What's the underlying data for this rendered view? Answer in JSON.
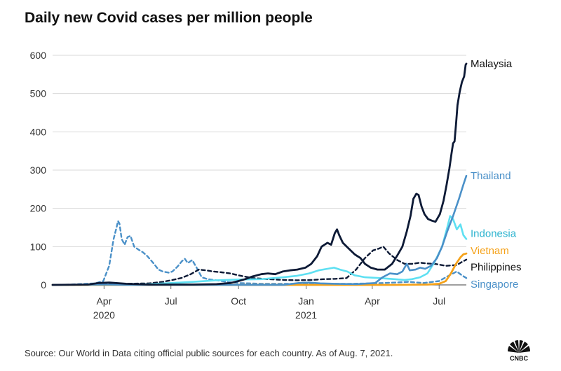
{
  "title": "Daily new Covid cases per million people",
  "source": "Source: Our World in Data citing official public sources for each country. As of Aug. 7, 2021.",
  "logo": {
    "icon": "cnbc-peacock-logo",
    "text": "CNBC"
  },
  "chart_data": {
    "type": "line",
    "title": "Daily new Covid cases per million people",
    "xlabel": "",
    "ylabel": "",
    "ylim": [
      0,
      600
    ],
    "xlim": [
      "2020-01-22",
      "2021-08-07"
    ],
    "yticks": [
      0,
      100,
      200,
      300,
      400,
      500,
      600
    ],
    "xticks": [
      {
        "date": "2020-04-01",
        "label": "Apr",
        "sub": "2020"
      },
      {
        "date": "2020-07-01",
        "label": "Jul",
        "sub": ""
      },
      {
        "date": "2020-10-01",
        "label": "Oct",
        "sub": ""
      },
      {
        "date": "2021-01-01",
        "label": "Jan",
        "sub": "2021"
      },
      {
        "date": "2021-04-01",
        "label": "Apr",
        "sub": ""
      },
      {
        "date": "2021-07-01",
        "label": "Jul",
        "sub": ""
      }
    ],
    "grid": true,
    "legend": "direct labels at line ends",
    "series": [
      {
        "name": "Singapore",
        "color": "#4a90c8",
        "dash": true,
        "width": 2.4,
        "points": [
          [
            "2020-01-22",
            0
          ],
          [
            "2020-02-15",
            1
          ],
          [
            "2020-03-20",
            4
          ],
          [
            "2020-03-31",
            10
          ],
          [
            "2020-04-08",
            50
          ],
          [
            "2020-04-14",
            120
          ],
          [
            "2020-04-18",
            150
          ],
          [
            "2020-04-20",
            167
          ],
          [
            "2020-04-22",
            160
          ],
          [
            "2020-04-25",
            120
          ],
          [
            "2020-04-29",
            105
          ],
          [
            "2020-05-03",
            125
          ],
          [
            "2020-05-07",
            128
          ],
          [
            "2020-05-12",
            100
          ],
          [
            "2020-05-18",
            92
          ],
          [
            "2020-05-24",
            85
          ],
          [
            "2020-05-30",
            75
          ],
          [
            "2020-06-08",
            55
          ],
          [
            "2020-06-14",
            40
          ],
          [
            "2020-06-20",
            35
          ],
          [
            "2020-06-28",
            32
          ],
          [
            "2020-07-03",
            35
          ],
          [
            "2020-07-10",
            48
          ],
          [
            "2020-07-16",
            62
          ],
          [
            "2020-07-20",
            68
          ],
          [
            "2020-07-24",
            57
          ],
          [
            "2020-07-30",
            65
          ],
          [
            "2020-08-05",
            45
          ],
          [
            "2020-08-12",
            20
          ],
          [
            "2020-08-20",
            15
          ],
          [
            "2020-09-01",
            12
          ],
          [
            "2020-09-15",
            8
          ],
          [
            "2020-10-01",
            5
          ],
          [
            "2020-11-01",
            3
          ],
          [
            "2020-12-01",
            3
          ],
          [
            "2021-01-01",
            3
          ],
          [
            "2021-02-01",
            3
          ],
          [
            "2021-03-01",
            3
          ],
          [
            "2021-04-01",
            4
          ],
          [
            "2021-05-01",
            6
          ],
          [
            "2021-05-20",
            8
          ],
          [
            "2021-06-10",
            5
          ],
          [
            "2021-07-01",
            10
          ],
          [
            "2021-07-15",
            25
          ],
          [
            "2021-07-25",
            35
          ],
          [
            "2021-08-01",
            25
          ],
          [
            "2021-08-07",
            18
          ]
        ]
      },
      {
        "name": "Philippines",
        "color": "#0d1a36",
        "dash": true,
        "width": 2.4,
        "points": [
          [
            "2020-01-22",
            0
          ],
          [
            "2020-03-01",
            0
          ],
          [
            "2020-04-01",
            2
          ],
          [
            "2020-05-01",
            3
          ],
          [
            "2020-06-01",
            4
          ],
          [
            "2020-06-20",
            8
          ],
          [
            "2020-07-01",
            12
          ],
          [
            "2020-07-15",
            18
          ],
          [
            "2020-07-28",
            28
          ],
          [
            "2020-08-08",
            40
          ],
          [
            "2020-08-18",
            38
          ],
          [
            "2020-08-28",
            35
          ],
          [
            "2020-09-08",
            33
          ],
          [
            "2020-09-20",
            30
          ],
          [
            "2020-10-01",
            25
          ],
          [
            "2020-10-20",
            18
          ],
          [
            "2020-11-10",
            15
          ],
          [
            "2020-12-01",
            13
          ],
          [
            "2020-12-20",
            12
          ],
          [
            "2021-01-10",
            13
          ],
          [
            "2021-01-25",
            15
          ],
          [
            "2021-02-10",
            16
          ],
          [
            "2021-02-25",
            18
          ],
          [
            "2021-03-10",
            40
          ],
          [
            "2021-03-22",
            70
          ],
          [
            "2021-04-02",
            90
          ],
          [
            "2021-04-10",
            95
          ],
          [
            "2021-04-16",
            100
          ],
          [
            "2021-04-24",
            82
          ],
          [
            "2021-05-05",
            65
          ],
          [
            "2021-05-15",
            55
          ],
          [
            "2021-05-25",
            55
          ],
          [
            "2021-06-05",
            58
          ],
          [
            "2021-06-15",
            56
          ],
          [
            "2021-06-25",
            55
          ],
          [
            "2021-07-10",
            50
          ],
          [
            "2021-07-25",
            52
          ],
          [
            "2021-08-01",
            60
          ],
          [
            "2021-08-07",
            66
          ]
        ]
      },
      {
        "name": "Indonesia",
        "color": "#5ee0f2",
        "dash": false,
        "width": 2.6,
        "points": [
          [
            "2020-01-22",
            0
          ],
          [
            "2020-04-01",
            0
          ],
          [
            "2020-05-01",
            1
          ],
          [
            "2020-06-01",
            2
          ],
          [
            "2020-07-01",
            5
          ],
          [
            "2020-08-01",
            8
          ],
          [
            "2020-09-01",
            12
          ],
          [
            "2020-10-01",
            14
          ],
          [
            "2020-11-01",
            15
          ],
          [
            "2020-12-01",
            20
          ],
          [
            "2020-12-20",
            24
          ],
          [
            "2021-01-05",
            30
          ],
          [
            "2021-01-18",
            38
          ],
          [
            "2021-01-30",
            42
          ],
          [
            "2021-02-08",
            45
          ],
          [
            "2021-02-16",
            40
          ],
          [
            "2021-02-26",
            35
          ],
          [
            "2021-03-08",
            25
          ],
          [
            "2021-03-22",
            20
          ],
          [
            "2021-04-10",
            18
          ],
          [
            "2021-05-01",
            15
          ],
          [
            "2021-05-15",
            13
          ],
          [
            "2021-05-25",
            15
          ],
          [
            "2021-06-05",
            20
          ],
          [
            "2021-06-15",
            30
          ],
          [
            "2021-06-25",
            60
          ],
          [
            "2021-07-05",
            100
          ],
          [
            "2021-07-12",
            150
          ],
          [
            "2021-07-16",
            180
          ],
          [
            "2021-07-20",
            172
          ],
          [
            "2021-07-25",
            145
          ],
          [
            "2021-07-30",
            158
          ],
          [
            "2021-08-03",
            130
          ],
          [
            "2021-08-07",
            120
          ]
        ]
      },
      {
        "name": "Vietnam",
        "color": "#f5a21a",
        "dash": false,
        "width": 2.8,
        "points": [
          [
            "2020-01-22",
            0
          ],
          [
            "2021-05-01",
            0
          ],
          [
            "2021-06-15",
            1
          ],
          [
            "2021-07-01",
            3
          ],
          [
            "2021-07-10",
            10
          ],
          [
            "2021-07-17",
            30
          ],
          [
            "2021-07-24",
            55
          ],
          [
            "2021-07-30",
            72
          ],
          [
            "2021-08-03",
            80
          ],
          [
            "2021-08-07",
            82
          ]
        ]
      },
      {
        "name": "Thailand",
        "color": "#4a90c8",
        "dash": false,
        "width": 2.6,
        "points": [
          [
            "2020-01-22",
            0
          ],
          [
            "2020-04-01",
            1
          ],
          [
            "2020-05-01",
            0
          ],
          [
            "2020-12-01",
            0
          ],
          [
            "2020-12-22",
            5
          ],
          [
            "2021-01-05",
            6
          ],
          [
            "2021-01-20",
            4
          ],
          [
            "2021-02-10",
            3
          ],
          [
            "2021-03-10",
            2
          ],
          [
            "2021-04-05",
            5
          ],
          [
            "2021-04-15",
            20
          ],
          [
            "2021-04-25",
            30
          ],
          [
            "2021-05-05",
            28
          ],
          [
            "2021-05-12",
            35
          ],
          [
            "2021-05-18",
            55
          ],
          [
            "2021-05-22",
            38
          ],
          [
            "2021-05-30",
            40
          ],
          [
            "2021-06-05",
            45
          ],
          [
            "2021-06-12",
            42
          ],
          [
            "2021-06-20",
            50
          ],
          [
            "2021-06-28",
            70
          ],
          [
            "2021-07-05",
            100
          ],
          [
            "2021-07-12",
            140
          ],
          [
            "2021-07-20",
            180
          ],
          [
            "2021-07-28",
            225
          ],
          [
            "2021-08-03",
            262
          ],
          [
            "2021-08-07",
            285
          ]
        ]
      },
      {
        "name": "Malaysia",
        "color": "#0d1a36",
        "dash": false,
        "width": 2.8,
        "points": [
          [
            "2020-01-22",
            0
          ],
          [
            "2020-03-10",
            1
          ],
          [
            "2020-03-25",
            5
          ],
          [
            "2020-04-08",
            6
          ],
          [
            "2020-05-01",
            3
          ],
          [
            "2020-06-01",
            1
          ],
          [
            "2020-07-01",
            1
          ],
          [
            "2020-08-01",
            1
          ],
          [
            "2020-09-01",
            2
          ],
          [
            "2020-09-20",
            5
          ],
          [
            "2020-10-01",
            10
          ],
          [
            "2020-10-10",
            15
          ],
          [
            "2020-10-20",
            22
          ],
          [
            "2020-11-01",
            28
          ],
          [
            "2020-11-10",
            30
          ],
          [
            "2020-11-20",
            28
          ],
          [
            "2020-11-30",
            35
          ],
          [
            "2020-12-10",
            38
          ],
          [
            "2020-12-20",
            40
          ],
          [
            "2020-12-31",
            45
          ],
          [
            "2021-01-08",
            55
          ],
          [
            "2021-01-16",
            75
          ],
          [
            "2021-01-22",
            100
          ],
          [
            "2021-01-30",
            110
          ],
          [
            "2021-02-04",
            105
          ],
          [
            "2021-02-09",
            135
          ],
          [
            "2021-02-12",
            145
          ],
          [
            "2021-02-15",
            130
          ],
          [
            "2021-02-20",
            110
          ],
          [
            "2021-02-28",
            95
          ],
          [
            "2021-03-08",
            80
          ],
          [
            "2021-03-16",
            70
          ],
          [
            "2021-03-22",
            55
          ],
          [
            "2021-03-30",
            45
          ],
          [
            "2021-04-08",
            40
          ],
          [
            "2021-04-18",
            40
          ],
          [
            "2021-04-28",
            55
          ],
          [
            "2021-05-06",
            80
          ],
          [
            "2021-05-12",
            100
          ],
          [
            "2021-05-18",
            140
          ],
          [
            "2021-05-23",
            180
          ],
          [
            "2021-05-27",
            225
          ],
          [
            "2021-05-31",
            238
          ],
          [
            "2021-06-03",
            235
          ],
          [
            "2021-06-07",
            205
          ],
          [
            "2021-06-11",
            185
          ],
          [
            "2021-06-16",
            172
          ],
          [
            "2021-06-21",
            168
          ],
          [
            "2021-06-26",
            165
          ],
          [
            "2021-07-02",
            185
          ],
          [
            "2021-07-07",
            220
          ],
          [
            "2021-07-11",
            260
          ],
          [
            "2021-07-15",
            305
          ],
          [
            "2021-07-18",
            345
          ],
          [
            "2021-07-20",
            370
          ],
          [
            "2021-07-22",
            375
          ],
          [
            "2021-07-24",
            420
          ],
          [
            "2021-07-26",
            470
          ],
          [
            "2021-07-29",
            505
          ],
          [
            "2021-08-01",
            530
          ],
          [
            "2021-08-04",
            545
          ],
          [
            "2021-08-06",
            575
          ],
          [
            "2021-08-07",
            578
          ]
        ]
      }
    ],
    "end_labels": [
      {
        "series": "Malaysia",
        "text": "Malaysia",
        "color": "#111111",
        "y": 578
      },
      {
        "series": "Thailand",
        "text": "Thailand",
        "color": "#4a90c8",
        "y": 285
      },
      {
        "series": "Indonesia",
        "text": "Indonesia",
        "color": "#2cb3cf",
        "y": 134
      },
      {
        "series": "Vietnam",
        "text": "Vietnam",
        "color": "#f5a21a",
        "y": 90
      },
      {
        "series": "Philippines",
        "text": "Philippines",
        "color": "#111111",
        "y": 47
      },
      {
        "series": "Singapore",
        "text": "Singapore",
        "color": "#4a90c8",
        "y": 2
      }
    ]
  }
}
